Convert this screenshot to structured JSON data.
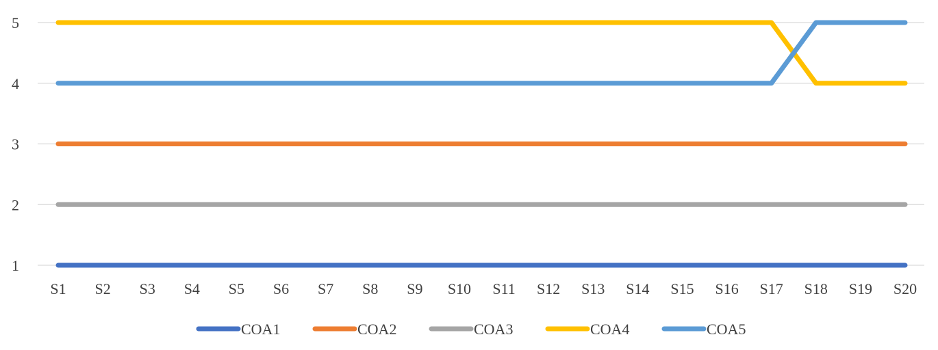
{
  "chart_data": {
    "type": "line",
    "title": "",
    "xlabel": "",
    "ylabel": "",
    "categories": [
      "S1",
      "S2",
      "S3",
      "S4",
      "S5",
      "S6",
      "S7",
      "S8",
      "S9",
      "S10",
      "S11",
      "S12",
      "S13",
      "S14",
      "S15",
      "S16",
      "S17",
      "S18",
      "S19",
      "S20"
    ],
    "ylim": [
      1,
      5
    ],
    "yticks": [
      "1",
      "2",
      "3",
      "4",
      "5"
    ],
    "grid": "horizontal",
    "legend_position": "bottom",
    "series": [
      {
        "name": "COA1",
        "color": "#4472c4",
        "values": [
          1,
          1,
          1,
          1,
          1,
          1,
          1,
          1,
          1,
          1,
          1,
          1,
          1,
          1,
          1,
          1,
          1,
          1,
          1,
          1
        ]
      },
      {
        "name": "COA2",
        "color": "#ed7d31",
        "values": [
          3,
          3,
          3,
          3,
          3,
          3,
          3,
          3,
          3,
          3,
          3,
          3,
          3,
          3,
          3,
          3,
          3,
          3,
          3,
          3
        ]
      },
      {
        "name": "COA3",
        "color": "#a5a5a5",
        "values": [
          2,
          2,
          2,
          2,
          2,
          2,
          2,
          2,
          2,
          2,
          2,
          2,
          2,
          2,
          2,
          2,
          2,
          2,
          2,
          2
        ]
      },
      {
        "name": "COA4",
        "color": "#ffc000",
        "values": [
          5,
          5,
          5,
          5,
          5,
          5,
          5,
          5,
          5,
          5,
          5,
          5,
          5,
          5,
          5,
          5,
          5,
          4,
          4,
          4
        ]
      },
      {
        "name": "COA5",
        "color": "#5b9bd5",
        "values": [
          4,
          4,
          4,
          4,
          4,
          4,
          4,
          4,
          4,
          4,
          4,
          4,
          4,
          4,
          4,
          4,
          4,
          5,
          5,
          5
        ]
      }
    ]
  }
}
